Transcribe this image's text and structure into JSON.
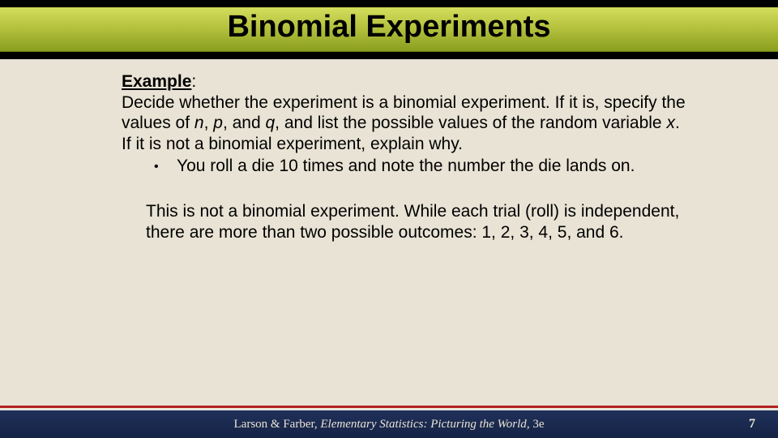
{
  "colors": {
    "background": "#e8e3d5",
    "title_bar_gradient": [
      "#d3dd5c",
      "#b5c23e",
      "#8a9e1f"
    ],
    "black_bar": "#000000",
    "divider_red": "#b42020",
    "footer_gradient": [
      "#20305a",
      "#152344"
    ],
    "footer_text": "#e8e3d5",
    "body_text": "#000000"
  },
  "typography": {
    "title_fontsize": 38,
    "title_weight": "bold",
    "body_fontsize": 21,
    "body_family": "Arial",
    "footer_fontsize": 15,
    "footer_family": "Times New Roman"
  },
  "title": "Binomial Experiments",
  "example": {
    "label": "Example",
    "label_suffix": ":",
    "prompt_part1": "Decide whether the experiment is a binomial experiment.  If it is, specify the values of ",
    "var_n": "n",
    "sep1": ", ",
    "var_p": "p",
    "sep2": ", and ",
    "var_q": "q",
    "prompt_part2": ", and list the possible values of the random variable ",
    "var_x": "x",
    "prompt_part3": ".  If it is not a binomial experiment, explain why.",
    "bullet_glyph": "•",
    "bullet_text": "You roll a die 10 times and note the number the die lands on."
  },
  "answer": "This is not a binomial experiment.  While each trial (roll) is independent, there are more than two possible outcomes: 1, 2, 3, 4, 5, and 6.",
  "footer": {
    "authors": "Larson & Farber, ",
    "book": "Elementary Statistics: Picturing the World",
    "edition": ", 3e",
    "page": "7"
  }
}
